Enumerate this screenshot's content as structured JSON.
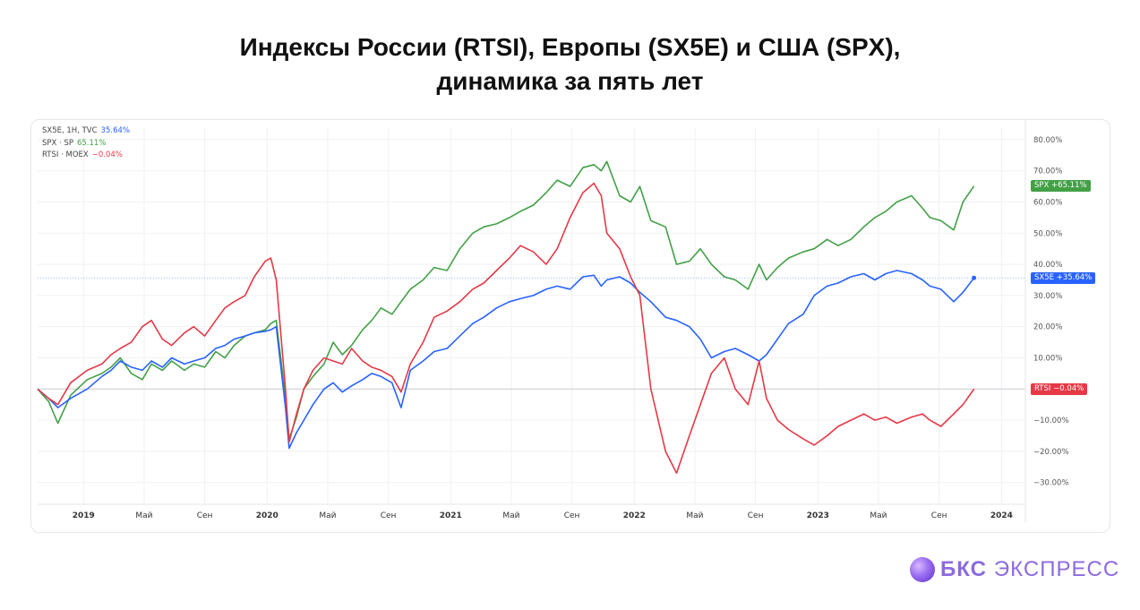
{
  "title": {
    "line1": "Индексы России (RTSI), Европы (SX5E) и США (SPX),",
    "line2": "динамика за пять лет"
  },
  "legend": [
    {
      "label": "SX5E, 1H, TVC",
      "value": "35.64%",
      "color": "#2962ff"
    },
    {
      "label": "SPX · SP",
      "value": "65.11%",
      "color": "#43a047"
    },
    {
      "label": "RTSI · MOEX",
      "value": "−0.04%",
      "color": "#e53946"
    }
  ],
  "price_tags": {
    "spx": "SPX  +65.11%",
    "sx5e": "SX5E  +35.64%",
    "rtsi": "RTSI  −0.04%"
  },
  "brand": {
    "bold": "БКС",
    "rest": "ЭКСПРЕСС"
  },
  "chart_data": {
    "type": "line",
    "x_labels": [
      {
        "label": "2019",
        "t": 0.25,
        "bold": true
      },
      {
        "label": "Май",
        "t": 0.58
      },
      {
        "label": "Сен",
        "t": 0.91
      },
      {
        "label": "2020",
        "t": 1.25,
        "bold": true
      },
      {
        "label": "Май",
        "t": 1.58
      },
      {
        "label": "Сен",
        "t": 1.91
      },
      {
        "label": "2021",
        "t": 2.25,
        "bold": true
      },
      {
        "label": "Май",
        "t": 2.58
      },
      {
        "label": "Сен",
        "t": 2.91
      },
      {
        "label": "2022",
        "t": 3.25,
        "bold": true
      },
      {
        "label": "Май",
        "t": 3.58
      },
      {
        "label": "Сен",
        "t": 3.91
      },
      {
        "label": "2023",
        "t": 4.25,
        "bold": true
      },
      {
        "label": "Май",
        "t": 4.58
      },
      {
        "label": "Сен",
        "t": 4.91
      },
      {
        "label": "2024",
        "t": 5.25,
        "bold": true
      }
    ],
    "y_ticks": [
      80,
      70,
      60,
      50,
      40,
      30,
      20,
      10,
      -10,
      -20,
      -30
    ],
    "y_tick_labels": [
      "80.00%",
      "70.00%",
      "60.00%",
      "50.00%",
      "40.00%",
      "30.00%",
      "20.00%",
      "10.00%",
      "−10.00%",
      "−20.00%",
      "−30.00%"
    ],
    "ylim": [
      -37,
      84
    ],
    "xlim": [
      0,
      5.38
    ],
    "baseline": 0,
    "series": [
      {
        "name": "SPX",
        "color": "#43a047",
        "points": [
          [
            0,
            0
          ],
          [
            0.06,
            -4
          ],
          [
            0.11,
            -11
          ],
          [
            0.18,
            -2
          ],
          [
            0.27,
            3
          ],
          [
            0.35,
            5
          ],
          [
            0.4,
            7
          ],
          [
            0.45,
            10
          ],
          [
            0.51,
            5
          ],
          [
            0.57,
            3
          ],
          [
            0.62,
            8
          ],
          [
            0.68,
            6
          ],
          [
            0.73,
            9
          ],
          [
            0.8,
            6
          ],
          [
            0.85,
            8
          ],
          [
            0.91,
            7
          ],
          [
            0.97,
            12
          ],
          [
            1.02,
            10
          ],
          [
            1.07,
            14
          ],
          [
            1.13,
            17
          ],
          [
            1.18,
            18
          ],
          [
            1.24,
            19
          ],
          [
            1.27,
            21
          ],
          [
            1.3,
            22
          ],
          [
            1.35,
            -3
          ],
          [
            1.37,
            -16
          ],
          [
            1.41,
            -9
          ],
          [
            1.45,
            0
          ],
          [
            1.5,
            4
          ],
          [
            1.56,
            8
          ],
          [
            1.61,
            15
          ],
          [
            1.66,
            11
          ],
          [
            1.71,
            14
          ],
          [
            1.77,
            19
          ],
          [
            1.82,
            22
          ],
          [
            1.87,
            26
          ],
          [
            1.93,
            24
          ],
          [
            1.98,
            28
          ],
          [
            2.03,
            32
          ],
          [
            2.1,
            35
          ],
          [
            2.16,
            39
          ],
          [
            2.23,
            38
          ],
          [
            2.3,
            45
          ],
          [
            2.37,
            50
          ],
          [
            2.43,
            52
          ],
          [
            2.5,
            53
          ],
          [
            2.57,
            55
          ],
          [
            2.63,
            57
          ],
          [
            2.7,
            59
          ],
          [
            2.77,
            63
          ],
          [
            2.83,
            67
          ],
          [
            2.9,
            65
          ],
          [
            2.97,
            71
          ],
          [
            3.03,
            72
          ],
          [
            3.07,
            70
          ],
          [
            3.1,
            73
          ],
          [
            3.17,
            62
          ],
          [
            3.23,
            60
          ],
          [
            3.28,
            65
          ],
          [
            3.34,
            54
          ],
          [
            3.42,
            52
          ],
          [
            3.48,
            40
          ],
          [
            3.55,
            41
          ],
          [
            3.61,
            45
          ],
          [
            3.67,
            40
          ],
          [
            3.74,
            36
          ],
          [
            3.8,
            35
          ],
          [
            3.87,
            32
          ],
          [
            3.93,
            40
          ],
          [
            3.97,
            35
          ],
          [
            4.03,
            39
          ],
          [
            4.09,
            42
          ],
          [
            4.17,
            44
          ],
          [
            4.23,
            45
          ],
          [
            4.3,
            48
          ],
          [
            4.36,
            46
          ],
          [
            4.43,
            48
          ],
          [
            4.5,
            52
          ],
          [
            4.56,
            55
          ],
          [
            4.62,
            57
          ],
          [
            4.68,
            60
          ],
          [
            4.76,
            62
          ],
          [
            4.82,
            58
          ],
          [
            4.86,
            55
          ],
          [
            4.92,
            54
          ],
          [
            4.99,
            51
          ],
          [
            5.04,
            60
          ],
          [
            5.1,
            65.11
          ]
        ]
      },
      {
        "name": "SX5E",
        "color": "#2962ff",
        "points": [
          [
            0,
            0
          ],
          [
            0.06,
            -3
          ],
          [
            0.11,
            -6
          ],
          [
            0.18,
            -3
          ],
          [
            0.27,
            0
          ],
          [
            0.35,
            4
          ],
          [
            0.4,
            6
          ],
          [
            0.45,
            9
          ],
          [
            0.51,
            7
          ],
          [
            0.57,
            6
          ],
          [
            0.62,
            9
          ],
          [
            0.68,
            7
          ],
          [
            0.73,
            10
          ],
          [
            0.8,
            8
          ],
          [
            0.85,
            9
          ],
          [
            0.91,
            10
          ],
          [
            0.97,
            13
          ],
          [
            1.02,
            14
          ],
          [
            1.07,
            16
          ],
          [
            1.13,
            17
          ],
          [
            1.18,
            18
          ],
          [
            1.24,
            18.5
          ],
          [
            1.27,
            19
          ],
          [
            1.3,
            20
          ],
          [
            1.35,
            -6
          ],
          [
            1.37,
            -19
          ],
          [
            1.41,
            -14
          ],
          [
            1.45,
            -10
          ],
          [
            1.5,
            -5
          ],
          [
            1.56,
            0
          ],
          [
            1.61,
            2
          ],
          [
            1.66,
            -1
          ],
          [
            1.71,
            1
          ],
          [
            1.77,
            3
          ],
          [
            1.82,
            5
          ],
          [
            1.87,
            4
          ],
          [
            1.93,
            2
          ],
          [
            1.98,
            -6
          ],
          [
            2.03,
            6
          ],
          [
            2.1,
            9
          ],
          [
            2.16,
            12
          ],
          [
            2.23,
            13
          ],
          [
            2.3,
            17
          ],
          [
            2.37,
            21
          ],
          [
            2.43,
            23
          ],
          [
            2.5,
            26
          ],
          [
            2.57,
            28
          ],
          [
            2.63,
            29
          ],
          [
            2.7,
            30
          ],
          [
            2.77,
            32
          ],
          [
            2.83,
            33
          ],
          [
            2.9,
            32
          ],
          [
            2.97,
            36
          ],
          [
            3.03,
            36.5
          ],
          [
            3.07,
            33
          ],
          [
            3.1,
            35
          ],
          [
            3.17,
            36
          ],
          [
            3.23,
            34
          ],
          [
            3.28,
            31
          ],
          [
            3.34,
            28
          ],
          [
            3.42,
            23
          ],
          [
            3.48,
            22
          ],
          [
            3.55,
            20
          ],
          [
            3.61,
            16
          ],
          [
            3.67,
            10
          ],
          [
            3.74,
            12
          ],
          [
            3.8,
            13
          ],
          [
            3.87,
            11
          ],
          [
            3.93,
            9
          ],
          [
            3.97,
            11
          ],
          [
            4.03,
            16
          ],
          [
            4.09,
            21
          ],
          [
            4.17,
            24
          ],
          [
            4.23,
            30
          ],
          [
            4.3,
            33
          ],
          [
            4.36,
            34
          ],
          [
            4.43,
            36
          ],
          [
            4.5,
            37
          ],
          [
            4.56,
            35
          ],
          [
            4.62,
            37
          ],
          [
            4.68,
            38
          ],
          [
            4.76,
            37
          ],
          [
            4.82,
            35
          ],
          [
            4.86,
            33
          ],
          [
            4.92,
            32
          ],
          [
            4.99,
            28
          ],
          [
            5.04,
            31
          ],
          [
            5.1,
            35.64
          ]
        ]
      },
      {
        "name": "RTSI",
        "color": "#e53946",
        "points": [
          [
            0,
            0
          ],
          [
            0.06,
            -3
          ],
          [
            0.11,
            -5
          ],
          [
            0.18,
            2
          ],
          [
            0.27,
            6
          ],
          [
            0.35,
            8
          ],
          [
            0.4,
            11
          ],
          [
            0.45,
            13
          ],
          [
            0.51,
            15
          ],
          [
            0.57,
            20
          ],
          [
            0.62,
            22
          ],
          [
            0.68,
            16
          ],
          [
            0.73,
            14
          ],
          [
            0.8,
            18
          ],
          [
            0.85,
            20
          ],
          [
            0.91,
            17
          ],
          [
            0.97,
            22
          ],
          [
            1.02,
            26
          ],
          [
            1.07,
            28
          ],
          [
            1.13,
            30
          ],
          [
            1.18,
            36
          ],
          [
            1.24,
            41
          ],
          [
            1.27,
            42
          ],
          [
            1.3,
            35
          ],
          [
            1.35,
            0
          ],
          [
            1.37,
            -17
          ],
          [
            1.41,
            -8
          ],
          [
            1.45,
            0
          ],
          [
            1.5,
            6
          ],
          [
            1.56,
            10
          ],
          [
            1.61,
            9
          ],
          [
            1.66,
            8
          ],
          [
            1.71,
            13
          ],
          [
            1.77,
            9
          ],
          [
            1.82,
            7
          ],
          [
            1.87,
            6
          ],
          [
            1.93,
            4
          ],
          [
            1.98,
            -1
          ],
          [
            2.03,
            8
          ],
          [
            2.1,
            15
          ],
          [
            2.16,
            23
          ],
          [
            2.23,
            25
          ],
          [
            2.3,
            28
          ],
          [
            2.37,
            32
          ],
          [
            2.43,
            34
          ],
          [
            2.5,
            38
          ],
          [
            2.57,
            42
          ],
          [
            2.63,
            46
          ],
          [
            2.7,
            44
          ],
          [
            2.77,
            40
          ],
          [
            2.83,
            45
          ],
          [
            2.9,
            55
          ],
          [
            2.97,
            63
          ],
          [
            3.03,
            66
          ],
          [
            3.07,
            62
          ],
          [
            3.1,
            50
          ],
          [
            3.17,
            45
          ],
          [
            3.23,
            36
          ],
          [
            3.28,
            30
          ],
          [
            3.34,
            0
          ],
          [
            3.42,
            -20
          ],
          [
            3.48,
            -27
          ],
          [
            3.55,
            -15
          ],
          [
            3.61,
            -5
          ],
          [
            3.67,
            5
          ],
          [
            3.74,
            10
          ],
          [
            3.8,
            0
          ],
          [
            3.87,
            -5
          ],
          [
            3.93,
            9
          ],
          [
            3.97,
            -3
          ],
          [
            4.03,
            -10
          ],
          [
            4.09,
            -13
          ],
          [
            4.17,
            -16
          ],
          [
            4.23,
            -18
          ],
          [
            4.3,
            -15
          ],
          [
            4.36,
            -12
          ],
          [
            4.43,
            -10
          ],
          [
            4.5,
            -8
          ],
          [
            4.56,
            -10
          ],
          [
            4.62,
            -9
          ],
          [
            4.68,
            -11
          ],
          [
            4.76,
            -9
          ],
          [
            4.82,
            -8
          ],
          [
            4.86,
            -10
          ],
          [
            4.92,
            -12
          ],
          [
            4.99,
            -8
          ],
          [
            5.04,
            -5
          ],
          [
            5.1,
            -0.04
          ]
        ]
      }
    ]
  }
}
